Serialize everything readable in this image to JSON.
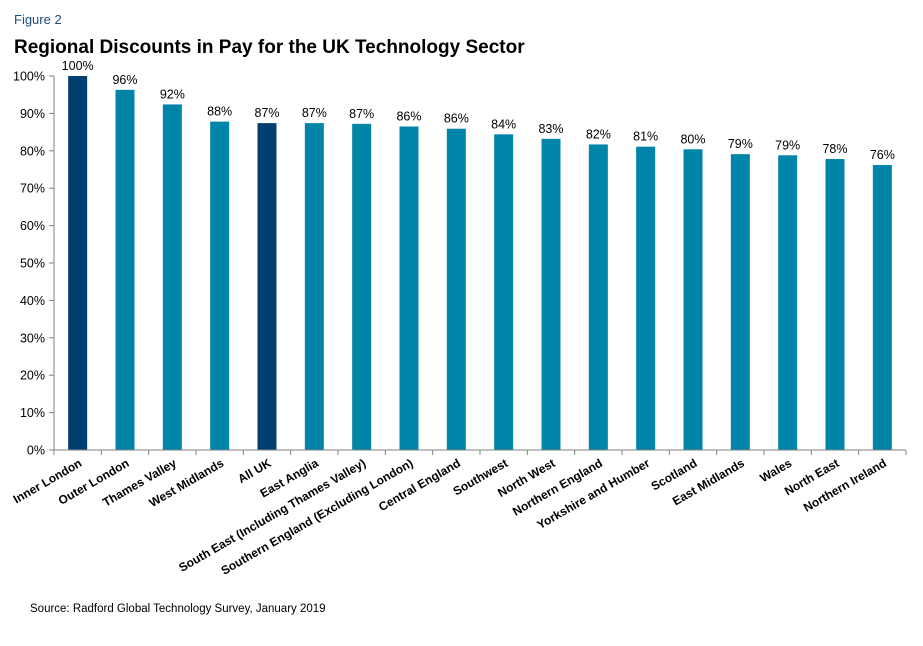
{
  "figure_label": "Figure 2",
  "source": "Source: Radford Global Technology Survey, January 2019",
  "chart_data": {
    "type": "bar",
    "title": "Regional Discounts in Pay for the UK Technology Sector",
    "xlabel": "",
    "ylabel": "",
    "ylim": [
      0,
      100
    ],
    "yticks": [
      0,
      10,
      20,
      30,
      40,
      50,
      60,
      70,
      80,
      90,
      100
    ],
    "ytick_suffix": "%",
    "grid": false,
    "legend": "none",
    "categories": [
      "Inner London",
      "Outer London",
      "Thames Valley",
      "West Midlands",
      "All UK",
      "East Anglia",
      "South East (Including Thames Valley)",
      "Southern England (Excluding London)",
      "Central England",
      "Southwest",
      "North West",
      "Northern England",
      "Yorkshire and Humber",
      "Scotland",
      "East Midlands",
      "Wales",
      "North East",
      "Northern Ireland"
    ],
    "values": [
      100,
      96.3,
      92.4,
      87.8,
      87.4,
      87.4,
      87.2,
      86.5,
      85.9,
      84.4,
      83.2,
      81.7,
      81.1,
      80.4,
      79.1,
      78.8,
      77.8,
      76.2
    ],
    "labels": [
      "100%",
      "96%",
      "92%",
      "88%",
      "87%",
      "87%",
      "87%",
      "86%",
      "86%",
      "84%",
      "83%",
      "82%",
      "81%",
      "80%",
      "79%",
      "79%",
      "78%",
      "76%"
    ],
    "highlight": [
      "Inner London",
      "All UK"
    ],
    "colors": {
      "bar": "#0085a8",
      "highlight": "#003f70",
      "axis": "#808080"
    }
  }
}
